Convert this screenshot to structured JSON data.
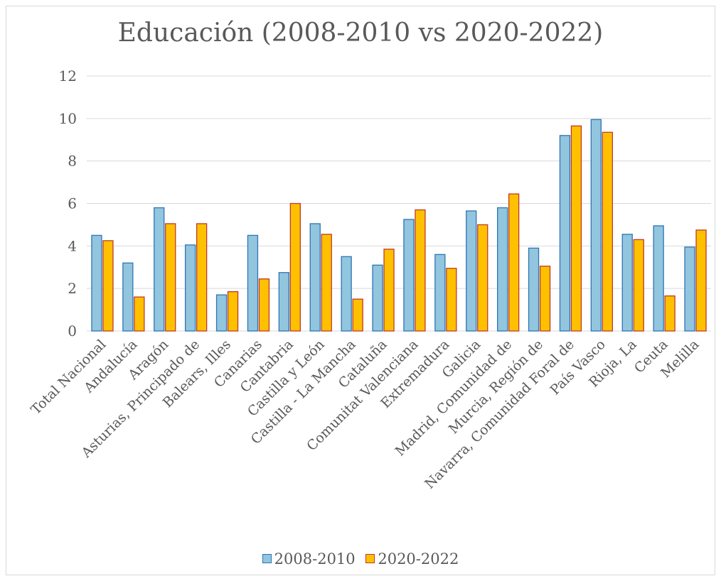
{
  "colors": {
    "series1_fill": "#92c5de",
    "series1_stroke": "#2e75b6",
    "series2_fill": "#ffc000",
    "series2_stroke": "#c0392b",
    "grid": "#d9d9d9",
    "text": "#595959"
  },
  "chart_data": {
    "type": "bar",
    "title": "Educación (2008-2010 vs 2020-2022)",
    "xlabel": "",
    "ylabel": "",
    "ylim": [
      0,
      12
    ],
    "yticks": [
      "0",
      "2",
      "4",
      "6",
      "8",
      "10",
      "12"
    ],
    "grid": true,
    "legend_position": "bottom",
    "categories": [
      "Total Nacional",
      "Andalucía",
      "Aragón",
      "Asturias, Principado de",
      "Balears, Illes",
      "Canarias",
      "Cantabria",
      "Castilla y León",
      "Castilla - La Mancha",
      "Cataluña",
      "Comunitat Valenciana",
      "Extremadura",
      "Galicia",
      "Madrid, Comunidad de",
      "Murcia, Región de",
      "Navarra, Comunidad Foral de",
      "País Vasco",
      "Rioja, La",
      "Ceuta",
      "Melilla"
    ],
    "series": [
      {
        "name": "2008-2010",
        "values": [
          4.5,
          3.2,
          5.8,
          4.05,
          1.7,
          4.5,
          2.75,
          5.05,
          3.5,
          3.1,
          5.25,
          3.6,
          5.65,
          5.8,
          3.9,
          9.2,
          9.95,
          4.55,
          4.95,
          3.95
        ]
      },
      {
        "name": "2020-2022",
        "values": [
          4.25,
          1.6,
          5.05,
          5.05,
          1.85,
          2.45,
          6.0,
          4.55,
          1.5,
          3.85,
          5.7,
          2.95,
          5.0,
          6.45,
          3.05,
          9.65,
          9.35,
          4.3,
          1.65,
          4.75
        ]
      }
    ]
  }
}
